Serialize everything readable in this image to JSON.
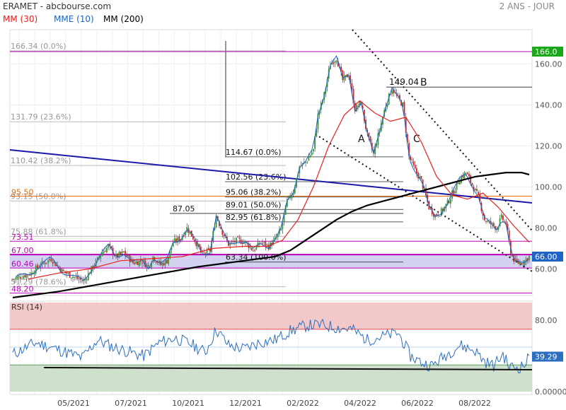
{
  "header": {
    "title": "ERAMET - abcbourse.com",
    "period": "2 ANS - JOUR"
  },
  "legend": [
    {
      "label": "MM (30)",
      "color": "#e8211e"
    },
    {
      "label": "MME (10)",
      "color": "#1f64c8"
    },
    {
      "label": "MM (200)",
      "color": "#000000"
    }
  ],
  "colors": {
    "up": "#2e9e2e",
    "down": "#d42020",
    "mm30": "#e8211e",
    "mme10": "#1f64c8",
    "mm200": "#000000",
    "fib": "#999999",
    "magenta": "#bb00bb",
    "orange": "#e07010",
    "trend": "#1a1aaa",
    "rsi": "#2c6fc0",
    "zone": "#c8c8ee"
  },
  "price_labels": {
    "last": "166.0",
    "current": "66.00",
    "rsi_last": "39.29"
  },
  "chart_data": [
    {
      "type": "candlestick",
      "title": "",
      "x_ticks": [
        "05/2021",
        "07/2021",
        "10/2021",
        "12/2021",
        "02/2022",
        "04/2022",
        "06/2022",
        "08/2022"
      ],
      "y_ticks": [
        60,
        80,
        100,
        120,
        140,
        160
      ],
      "y_tick_labels": [
        "60.00",
        "80.00",
        "100.00",
        "120.00",
        "140.00",
        "160.00"
      ],
      "ylim": [
        44,
        172
      ],
      "price_path": [
        [
          0,
          55
        ],
        [
          12,
          58
        ],
        [
          18,
          62
        ],
        [
          25,
          65
        ],
        [
          32,
          59
        ],
        [
          40,
          56
        ],
        [
          46,
          54
        ],
        [
          52,
          61
        ],
        [
          58,
          68
        ],
        [
          62,
          71
        ],
        [
          67,
          66
        ],
        [
          72,
          68
        ],
        [
          78,
          63
        ],
        [
          84,
          64
        ],
        [
          88,
          61
        ],
        [
          91,
          66
        ],
        [
          96,
          62
        ],
        [
          100,
          64
        ],
        [
          104,
          73
        ],
        [
          109,
          75
        ],
        [
          113,
          80
        ],
        [
          118,
          74
        ],
        [
          123,
          67
        ],
        [
          128,
          69
        ],
        [
          132,
          86
        ],
        [
          136,
          78
        ],
        [
          140,
          72
        ],
        [
          146,
          74
        ],
        [
          151,
          73
        ],
        [
          156,
          69
        ],
        [
          161,
          73
        ],
        [
          166,
          71
        ],
        [
          170,
          74
        ],
        [
          174,
          79
        ],
        [
          178,
          93
        ],
        [
          182,
          98
        ],
        [
          186,
          110
        ],
        [
          190,
          112
        ],
        [
          195,
          118
        ],
        [
          198,
          135
        ],
        [
          202,
          145
        ],
        [
          206,
          160
        ],
        [
          210,
          163
        ],
        [
          214,
          152
        ],
        [
          218,
          155
        ],
        [
          222,
          138
        ],
        [
          226,
          141
        ],
        [
          230,
          125
        ],
        [
          234,
          116
        ],
        [
          238,
          128
        ],
        [
          242,
          140
        ],
        [
          246,
          148
        ],
        [
          249,
          144
        ],
        [
          253,
          140
        ],
        [
          257,
          115
        ],
        [
          261,
          108
        ],
        [
          265,
          103
        ],
        [
          270,
          90
        ],
        [
          274,
          86
        ],
        [
          278,
          88
        ],
        [
          282,
          92
        ],
        [
          286,
          98
        ],
        [
          290,
          104
        ],
        [
          294,
          107
        ],
        [
          298,
          101
        ],
        [
          302,
          95
        ],
        [
          306,
          84
        ],
        [
          310,
          82
        ],
        [
          314,
          80
        ],
        [
          317,
          85
        ],
        [
          320,
          82
        ],
        [
          323,
          68
        ],
        [
          326,
          63
        ],
        [
          329,
          63
        ],
        [
          332,
          64
        ],
        [
          335,
          66
        ]
      ],
      "series": [
        {
          "name": "MM (200)",
          "x": [
            0,
            30,
            60,
            90,
            120,
            150,
            170,
            180,
            190,
            200,
            210,
            220,
            230,
            240,
            250,
            260,
            270,
            280,
            290,
            300,
            310,
            320,
            330,
            335
          ],
          "y": [
            46,
            49,
            53,
            57,
            61,
            64,
            66,
            69,
            74,
            79,
            84,
            88,
            91,
            93,
            95,
            97,
            99,
            101,
            103,
            105,
            106,
            107,
            107,
            106
          ]
        },
        {
          "name": "MM (30)",
          "x": [
            10,
            30,
            50,
            70,
            90,
            110,
            130,
            150,
            165,
            175,
            185,
            195,
            205,
            215,
            225,
            235,
            245,
            255,
            265,
            275,
            285,
            295,
            305,
            315,
            325,
            335
          ],
          "y": [
            55,
            58,
            60,
            64,
            65,
            66,
            70,
            71,
            71,
            74,
            84,
            100,
            120,
            135,
            142,
            136,
            132,
            134,
            122,
            105,
            96,
            94,
            97,
            90,
            81,
            73
          ]
        }
      ],
      "fibonacci_left": [
        {
          "value": 166.34,
          "label": "166.34",
          "pct": "(0.0%)"
        },
        {
          "value": 131.79,
          "label": "131.79",
          "pct": "(23.6%)"
        },
        {
          "value": 110.42,
          "label": "110.42",
          "pct": "(38.2%)"
        },
        {
          "value": 93.15,
          "label": "93.15",
          "pct": "(50.0%)"
        },
        {
          "value": 75.88,
          "label": "75.88",
          "pct": "(61.8%)"
        },
        {
          "value": 51.29,
          "label": "51.29",
          "pct": "(78.6%)"
        }
      ],
      "fibonacci_right": [
        {
          "value": 114.67,
          "label": "114.67",
          "pct": "(0.0%)"
        },
        {
          "value": 102.56,
          "label": "102.56",
          "pct": "(23.6%)"
        },
        {
          "value": 95.06,
          "label": "95.06",
          "pct": "(38.2%)"
        },
        {
          "value": 89.01,
          "label": "89.01",
          "pct": "(50.0%)"
        },
        {
          "value": 82.95,
          "label": "82.95",
          "pct": "(61.8%)"
        },
        {
          "value": 63.34,
          "label": "63.34",
          "pct": "(100.0%)"
        }
      ],
      "levels": [
        {
          "value": 95.5,
          "label": "95.50",
          "color": "orange"
        },
        {
          "value": 73.51,
          "label": "73.51",
          "color": "magenta"
        },
        {
          "value": 67.0,
          "label": "67.00",
          "color": "magenta"
        },
        {
          "value": 60.46,
          "label": "60.46",
          "color": "magenta"
        },
        {
          "value": 48.2,
          "label": "48.20",
          "color": "magenta"
        },
        {
          "value": 166.0,
          "label": "166.0",
          "color": "magenta"
        }
      ],
      "annotations": [
        {
          "text": "87.05",
          "value": 87.05
        },
        {
          "text": "149.04",
          "value": 149.04
        },
        {
          "text": "B",
          "value": 149.04
        },
        {
          "text": "A",
          "value": 118
        },
        {
          "text": "C",
          "value": 118
        }
      ],
      "zone": [
        60.46,
        67.0
      ]
    },
    {
      "type": "line",
      "title": "RSI (14)",
      "ylim": [
        0,
        100
      ],
      "y_ticks": [
        0,
        80
      ],
      "y_tick_labels": [
        "0.00000",
        "80.00"
      ],
      "overbought": 70,
      "oversold": 30,
      "rsi_path": [
        [
          0,
          42
        ],
        [
          15,
          55
        ],
        [
          30,
          47
        ],
        [
          45,
          38
        ],
        [
          55,
          58
        ],
        [
          65,
          50
        ],
        [
          75,
          45
        ],
        [
          85,
          40
        ],
        [
          95,
          55
        ],
        [
          105,
          60
        ],
        [
          115,
          54
        ],
        [
          125,
          44
        ],
        [
          132,
          70
        ],
        [
          140,
          52
        ],
        [
          150,
          48
        ],
        [
          160,
          55
        ],
        [
          170,
          58
        ],
        [
          180,
          68
        ],
        [
          190,
          74
        ],
        [
          200,
          75
        ],
        [
          210,
          72
        ],
        [
          220,
          70
        ],
        [
          230,
          58
        ],
        [
          240,
          62
        ],
        [
          250,
          66
        ],
        [
          258,
          40
        ],
        [
          266,
          32
        ],
        [
          272,
          29
        ],
        [
          280,
          40
        ],
        [
          290,
          52
        ],
        [
          300,
          46
        ],
        [
          306,
          34
        ],
        [
          312,
          29
        ],
        [
          318,
          42
        ],
        [
          322,
          28
        ],
        [
          328,
          27
        ],
        [
          332,
          30
        ],
        [
          335,
          39
        ]
      ],
      "last": 39.29
    }
  ]
}
